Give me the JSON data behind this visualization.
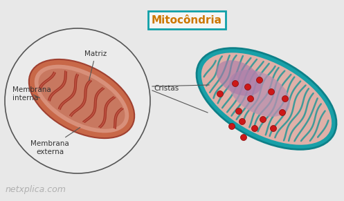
{
  "bg_color": "#e8e8e8",
  "title": "Mitocôndria",
  "title_box_facecolor": "#f5f5f5",
  "title_box_edge": "#cc7722",
  "title_color": "#cc7700",
  "title_fontsize": 11,
  "labels": {
    "membrana_externa": "Membrana\nexterna",
    "membrana_interna": "Membrana\ninterna",
    "cristas": "Cristas",
    "matriz": "Matriz"
  },
  "label_color": "#333333",
  "label_fontsize": 7.5,
  "watermark": "netxplica.com",
  "watermark_color": "#aaaaaa",
  "watermark_fontsize": 9,
  "circle_facecolor": "#ebebeb",
  "circle_edgecolor": "#555555",
  "circle_lw": 1.2,
  "outer_mem_color": "#c86848",
  "inner_space_color": "#d8907a",
  "inner_mem_color": "#c86848",
  "matrix_color": "#c87860",
  "crista_fill": "#c05040",
  "crista_edge": "#a03828",
  "mito_right_outer_color": "#18a0a8",
  "mito_right_outer_edge": "#0e8088",
  "mito_right_bg": "#e0b0a8",
  "mito_right_crista": "#309898",
  "mito_right_matrix": "#c8a0b8",
  "mito_right_purple": "#b890b0",
  "red_dot_color": "#cc1818",
  "red_dot_edge": "#880808",
  "title_box_teal_edge": "#10a0a8"
}
